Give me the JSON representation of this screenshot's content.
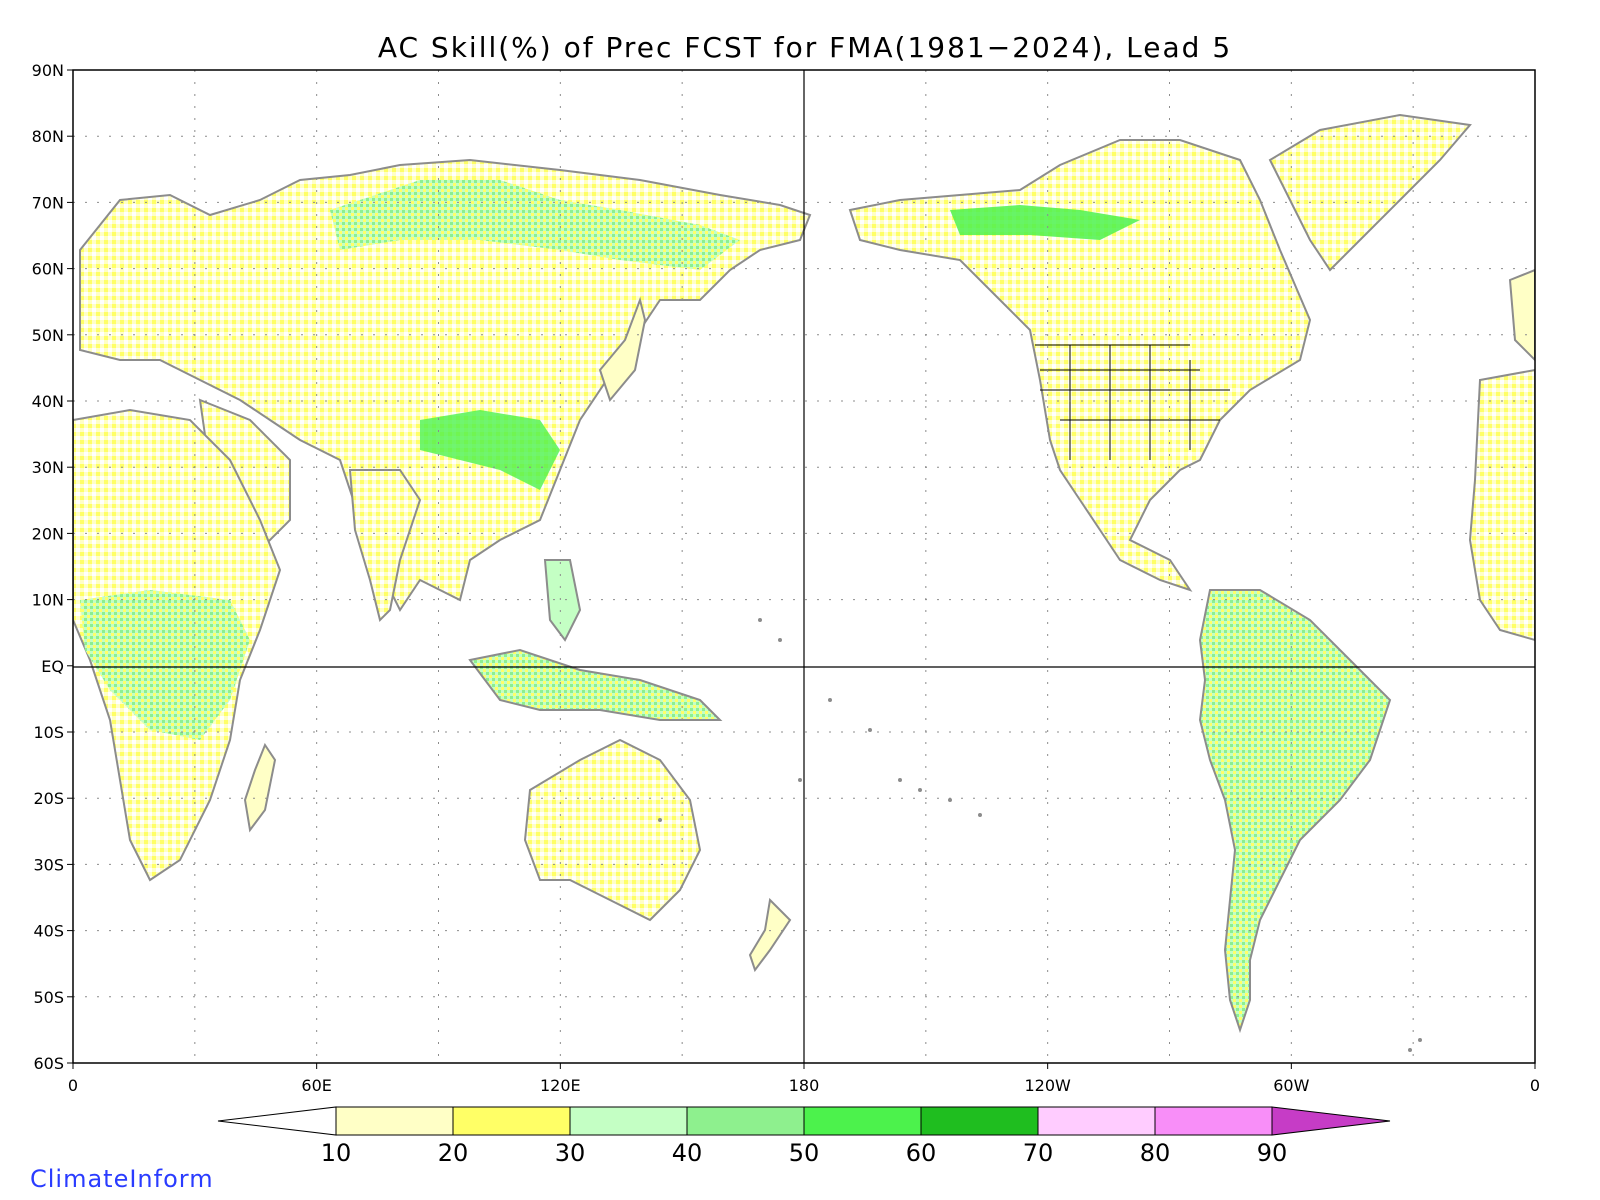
{
  "map": {
    "title": "AC Skill(%) of Prec FCST for FMA(1981−2024), Lead 5",
    "lat_labels": [
      "90N",
      "80N",
      "70N",
      "60N",
      "50N",
      "40N",
      "30N",
      "20N",
      "10N",
      "EQ",
      "10S",
      "20S",
      "30S",
      "40S",
      "50S",
      "60S"
    ],
    "lon_labels": [
      "0",
      "60E",
      "120E",
      "180",
      "120W",
      "60W",
      "0"
    ],
    "lat_range": [
      -60,
      90
    ],
    "lon_range": [
      0,
      360
    ],
    "grid": true,
    "colors": {
      "land_outline": "#8c8c8c",
      "grid": "#8c8c8c",
      "frame": "#000000",
      "state_lines": "#000000"
    }
  },
  "colorbar": {
    "labels": [
      "10",
      "20",
      "30",
      "40",
      "50",
      "60",
      "70",
      "80",
      "90"
    ],
    "colors": [
      "#ffffff",
      "#ffffc6",
      "#ffff66",
      "#c4ffc4",
      "#8ef08e",
      "#4cf24c",
      "#1fbe1f",
      "#ffccff",
      "#f88ef8",
      "#c63cc6"
    ]
  },
  "credit": "ClimateInform"
}
